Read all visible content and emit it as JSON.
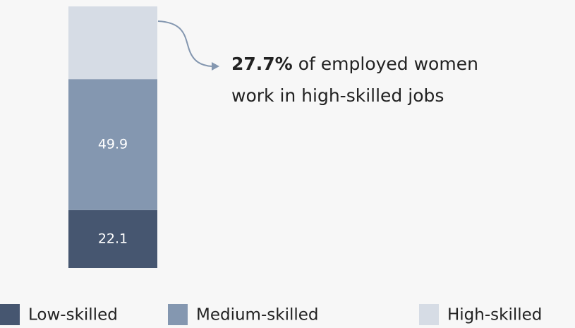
{
  "chart_data": {
    "type": "stacked_bar",
    "categories": [
      null
    ],
    "series": [
      {
        "name": "Low-skilled",
        "color": "#465670",
        "values": [
          22.1
        ]
      },
      {
        "name": "Medium-skilled",
        "color": "#8497b0",
        "values": [
          49.9
        ]
      },
      {
        "name": "High-skilled",
        "color": "#d6dce5",
        "values": [
          27.7
        ]
      }
    ],
    "ylim": [
      0,
      100
    ],
    "annotation": {
      "highlight": "27.7%",
      "lines": [
        "of employed women",
        "work in high-skilled jobs"
      ]
    }
  }
}
